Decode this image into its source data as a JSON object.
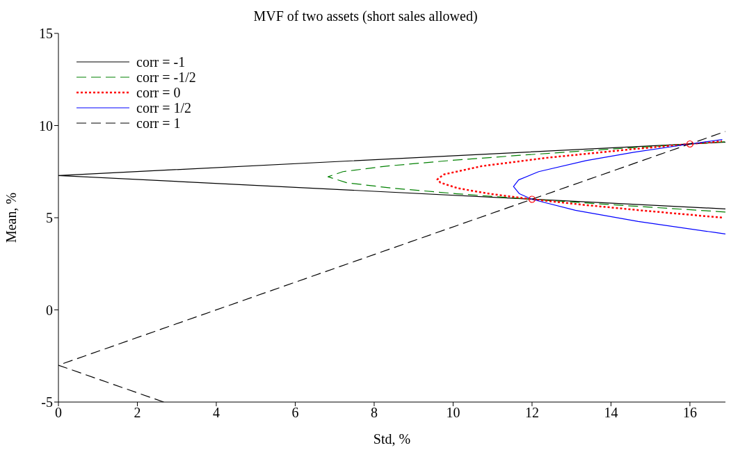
{
  "chart_data": {
    "type": "line",
    "title": "MVF of two assets (short sales allowed)",
    "xlabel": "Std, %",
    "ylabel": "Mean, %",
    "xlim": [
      0,
      16.9
    ],
    "xticks": [
      0,
      2,
      4,
      6,
      8,
      10,
      12,
      14,
      16
    ],
    "ylim": [
      -5,
      15
    ],
    "yticks": [
      -5,
      0,
      5,
      10,
      15
    ],
    "grid": false,
    "legend": "top left",
    "marker": "none",
    "series": [
      {
        "name": "corr = -1",
        "color": "#000000",
        "line_style": "solid",
        "x": [
          16.9,
          0,
          16.9
        ],
        "values": [
          5.48,
          7.29,
          9.1
        ]
      },
      {
        "name": "corr = -1/2",
        "color": "#008000",
        "line_style": "dashed",
        "x": [
          16.9,
          16.24,
          14.07,
          12,
          10.1,
          8.47,
          7.3,
          6.83,
          7.21,
          8.31,
          9.9,
          11.78,
          13.84,
          16,
          16.88
        ],
        "values": [
          5.31,
          5.4,
          5.7,
          6,
          6.3,
          6.6,
          6.9,
          7.22,
          7.5,
          7.8,
          8.1,
          8.4,
          8.7,
          9,
          9.12
        ]
      },
      {
        "name": "corr = 0",
        "color": "#ff0000",
        "line_style": "dotted",
        "x": [
          16.81,
          16.32,
          14.75,
          13.3,
          12,
          10.92,
          10.12,
          9.68,
          9.6,
          9.77,
          10.73,
          12.37,
          14.45,
          16,
          16.81
        ],
        "values": [
          5.01,
          5.1,
          5.4,
          5.7,
          6,
          6.3,
          6.6,
          6.9,
          7.08,
          7.35,
          7.8,
          8.25,
          8.7,
          9,
          9.15
        ]
      },
      {
        "name": "corr = 1/2",
        "color": "#0000ff",
        "line_style": "solid",
        "x": [
          16.9,
          16.63,
          14.69,
          13.1,
          12,
          11.68,
          11.53,
          11.66,
          12.17,
          13.37,
          14.58,
          16,
          16.51,
          16.82
        ],
        "values": [
          4.12,
          4.2,
          4.8,
          5.4,
          6,
          6.3,
          6.69,
          7.05,
          7.5,
          8.1,
          8.55,
          9,
          9.15,
          9.24
        ]
      },
      {
        "name": "corr = 1",
        "color": "#000000",
        "line_style": "dashed",
        "x": [
          2.67,
          0,
          16.9
        ],
        "values": [
          -5,
          -3,
          9.68
        ]
      },
      {
        "type": "scatter",
        "color": "#ff0000",
        "marker": "circle",
        "x": [
          12,
          16
        ],
        "values": [
          6,
          9
        ]
      }
    ]
  }
}
